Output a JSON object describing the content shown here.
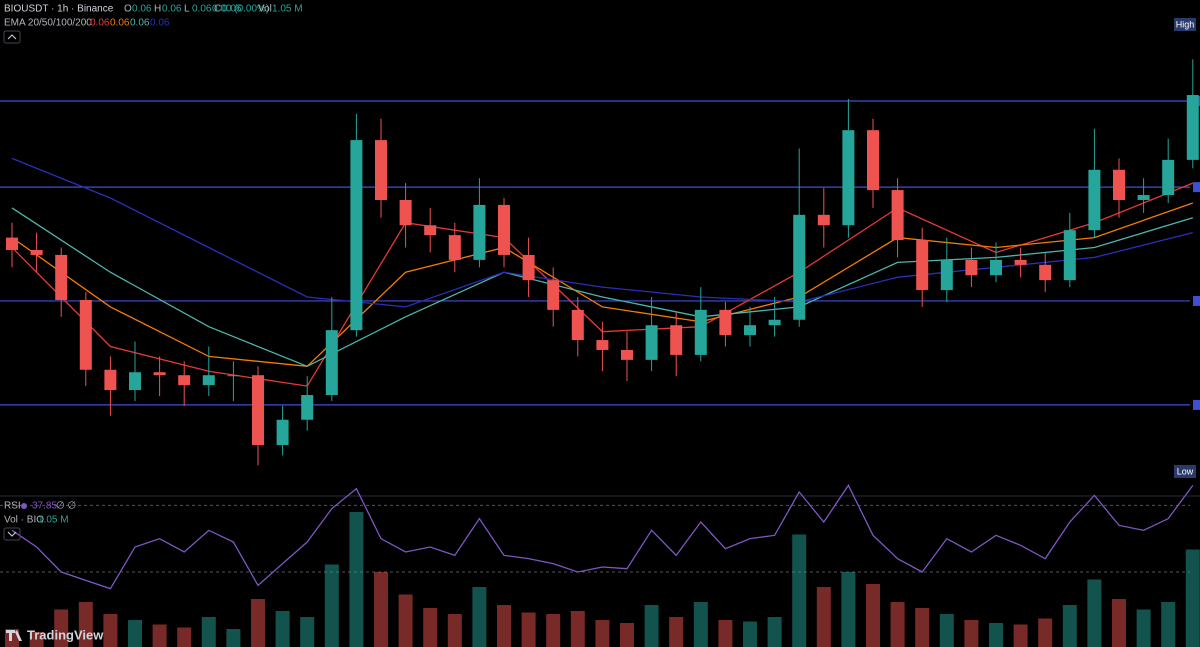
{
  "header": {
    "symbol": "BIOUSDT · 1h · Binance",
    "ohlc": [
      {
        "label": "O",
        "value": 0.06
      },
      {
        "label": "H",
        "value": 0.06
      },
      {
        "label": "L",
        "value": 0.06
      },
      {
        "label": "C",
        "value": 0.06
      }
    ],
    "change": "0.00 (0.00%)",
    "vol_label": "Vol",
    "vol_value": "1.05 M",
    "ema_label": "EMA 20/50/100/200",
    "ema_values": [
      0.06,
      0.06,
      0.06,
      0.06
    ],
    "rsi_label": "RSI",
    "rsi_value": 37.85,
    "rsi_extra": "∅ ∅",
    "volume_label": "Vol · BIO",
    "volume_value": "1.05 M"
  },
  "price_tags": {
    "high": "High",
    "low": "Low"
  },
  "brand": "TradingView",
  "chart_data": {
    "type": "candlestick",
    "ylim": [
      0,
      100
    ],
    "open": [
      52,
      49.5,
      48.5,
      39.4,
      25.3,
      21.2,
      24.8,
      24.2,
      22.2,
      24.2,
      24.2,
      10.1,
      15.2,
      20.2,
      33.3,
      71.7,
      59.6,
      54.5,
      52.5,
      47.5,
      58.6,
      48.5,
      43.4,
      37.4,
      31.3,
      29.3,
      27.3,
      34.3,
      28.3,
      37.4,
      32.3,
      34.3,
      35.4,
      56.6,
      54.5,
      73.7,
      61.6,
      51.5,
      41.4,
      47.5,
      44.4,
      47.5,
      46.5,
      43.4,
      53.5,
      65.7,
      59.6,
      60.6,
      67.7
    ],
    "high": [
      55,
      53,
      50,
      41,
      28,
      31,
      28,
      27,
      30,
      27,
      26,
      18,
      24,
      40,
      77,
      76,
      63,
      58,
      55,
      64,
      60,
      52,
      46,
      40,
      35,
      33,
      40,
      37,
      42,
      39,
      38,
      40,
      70,
      62,
      80,
      76,
      64,
      54,
      52,
      50,
      51,
      50,
      49,
      57,
      74,
      68,
      64,
      72,
      88
    ],
    "low": [
      46,
      45,
      36,
      22,
      16,
      19,
      20,
      18,
      20,
      19,
      6,
      8,
      13,
      19,
      32,
      56,
      50,
      49,
      45,
      46,
      46,
      40,
      34,
      28,
      25,
      23,
      25,
      24,
      27,
      30,
      30,
      32,
      34,
      50,
      52,
      58,
      48,
      38,
      39,
      42,
      43,
      44,
      41,
      42,
      52,
      56,
      57,
      59,
      66
    ],
    "close": [
      49.5,
      48.5,
      39.4,
      25.3,
      21.2,
      24.8,
      24.2,
      22.2,
      24.2,
      24.2,
      10.1,
      15.2,
      20.2,
      33.3,
      71.7,
      59.6,
      54.5,
      52.5,
      47.5,
      58.6,
      48.5,
      43.4,
      37.4,
      31.3,
      29.3,
      27.3,
      34.3,
      28.3,
      37.4,
      32.3,
      34.3,
      35.4,
      56.6,
      54.5,
      73.7,
      61.6,
      51.5,
      41.4,
      47.5,
      44.4,
      47.5,
      46.5,
      43.4,
      53.5,
      65.7,
      59.6,
      60.6,
      67.7,
      80.8
    ],
    "up_color": "#26a69a",
    "down_color": "#ef5350",
    "levels": [
      79.6,
      62.2,
      39.2,
      18.2
    ],
    "level_color": "#3d4fd6",
    "ema": {
      "x": [
        0,
        4,
        8,
        12,
        16,
        20,
        24,
        28,
        32,
        36,
        40,
        44,
        48
      ],
      "series": [
        {
          "color": "#e53935",
          "values": [
            50,
            30,
            25,
            22,
            55,
            52,
            33,
            34,
            45,
            58,
            49,
            55,
            63
          ]
        },
        {
          "color": "#f57c00",
          "values": [
            52,
            38,
            28,
            26,
            45,
            50,
            38,
            35,
            40,
            52,
            50,
            52,
            59
          ]
        },
        {
          "color": "#4db6ac",
          "values": [
            58,
            45,
            34,
            26,
            36,
            45,
            40,
            36,
            38,
            47,
            48,
            50,
            56
          ]
        },
        {
          "color": "#2a2fb8",
          "values": [
            68,
            60,
            50,
            40,
            38,
            45,
            42,
            40,
            39,
            44,
            46,
            48,
            53
          ]
        }
      ]
    },
    "volume": {
      "ylim": [
        0,
        10
      ],
      "values": [
        1.2,
        1.0,
        2.5,
        3.0,
        2.2,
        1.8,
        1.5,
        1.3,
        2.0,
        1.2,
        3.2,
        2.4,
        2.0,
        5.5,
        9.0,
        5.0,
        3.5,
        2.6,
        2.2,
        4.0,
        2.8,
        2.3,
        2.2,
        2.4,
        1.8,
        1.6,
        2.8,
        2.0,
        3.0,
        1.8,
        1.7,
        2.0,
        7.5,
        4.0,
        5.0,
        4.2,
        3.0,
        2.6,
        2.2,
        1.8,
        1.6,
        1.5,
        1.9,
        2.8,
        4.5,
        3.2,
        2.5,
        3.0,
        6.5
      ]
    },
    "rsi": {
      "ylim": [
        -15,
        75
      ],
      "bands": [
        30,
        70
      ],
      "color": "#7e57c2",
      "values": [
        55,
        45,
        30,
        25,
        20,
        45,
        50,
        42,
        55,
        48,
        22,
        35,
        48,
        68,
        80,
        50,
        42,
        45,
        40,
        62,
        40,
        38,
        35,
        30,
        33,
        32,
        55,
        40,
        60,
        44,
        50,
        52,
        78,
        60,
        82,
        52,
        38,
        30,
        50,
        42,
        52,
        46,
        38,
        60,
        76,
        58,
        55,
        62,
        82
      ]
    }
  }
}
